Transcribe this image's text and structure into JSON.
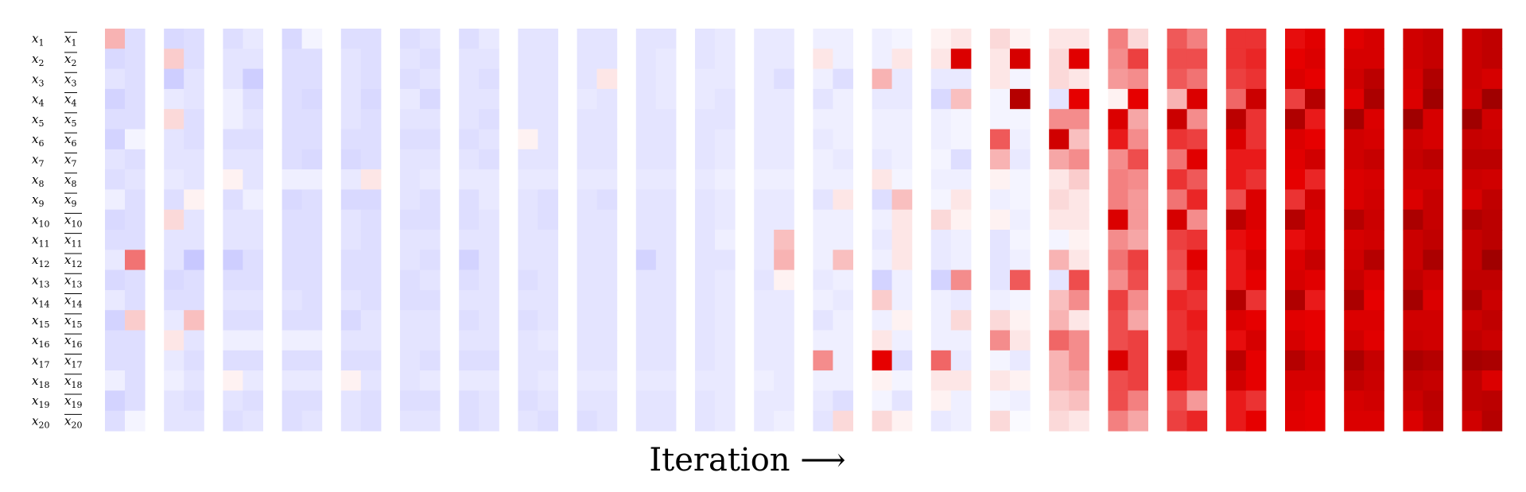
{
  "chart_data": {
    "type": "heatmap",
    "xlabel": "Iteration ⟶",
    "row_labels": [
      {
        "var": "x",
        "sub": "1"
      },
      {
        "var": "x",
        "sub": "2"
      },
      {
        "var": "x",
        "sub": "3"
      },
      {
        "var": "x",
        "sub": "4"
      },
      {
        "var": "x",
        "sub": "5"
      },
      {
        "var": "x",
        "sub": "6"
      },
      {
        "var": "x",
        "sub": "7"
      },
      {
        "var": "x",
        "sub": "8"
      },
      {
        "var": "x",
        "sub": "9"
      },
      {
        "var": "x",
        "sub": "10"
      },
      {
        "var": "x",
        "sub": "11"
      },
      {
        "var": "x",
        "sub": "12"
      },
      {
        "var": "x",
        "sub": "13"
      },
      {
        "var": "x",
        "sub": "14"
      },
      {
        "var": "x",
        "sub": "15"
      },
      {
        "var": "x",
        "sub": "16"
      },
      {
        "var": "x",
        "sub": "17"
      },
      {
        "var": "x",
        "sub": "18"
      },
      {
        "var": "x",
        "sub": "19"
      },
      {
        "var": "x",
        "sub": "20"
      }
    ],
    "negated_row_labels": [
      {
        "var": "x",
        "sub": "1"
      },
      {
        "var": "x",
        "sub": "2"
      },
      {
        "var": "x",
        "sub": "3"
      },
      {
        "var": "x",
        "sub": "4"
      },
      {
        "var": "x",
        "sub": "5"
      },
      {
        "var": "x",
        "sub": "6"
      },
      {
        "var": "x",
        "sub": "7"
      },
      {
        "var": "x",
        "sub": "8"
      },
      {
        "var": "x",
        "sub": "9"
      },
      {
        "var": "x",
        "sub": "10"
      },
      {
        "var": "x",
        "sub": "11"
      },
      {
        "var": "x",
        "sub": "12"
      },
      {
        "var": "x",
        "sub": "13"
      },
      {
        "var": "x",
        "sub": "14"
      },
      {
        "var": "x",
        "sub": "15"
      },
      {
        "var": "x",
        "sub": "16"
      },
      {
        "var": "x",
        "sub": "17"
      },
      {
        "var": "x",
        "sub": "18"
      },
      {
        "var": "x",
        "sub": "19"
      },
      {
        "var": "x",
        "sub": "20"
      }
    ],
    "colormap": {
      "low": "#c8c8ff",
      "mid": "#ffffff",
      "high": "#e60000",
      "max": "#7a0000"
    },
    "value_range": [
      -1,
      4
    ],
    "iterations": [
      [
        [
          0.6,
          -0.7,
          -0.5,
          -0.8,
          -0.6,
          -0.8,
          -0.5,
          -0.6,
          -0.3,
          -0.7,
          -0.6,
          -0.4,
          -0.7,
          -0.4,
          -0.8,
          -0.6,
          -0.6,
          -0.3,
          -0.8,
          -0.6
        ],
        [
          -0.6,
          -0.6,
          -0.6,
          -0.6,
          -0.6,
          -0.2,
          -0.6,
          -0.5,
          -0.6,
          -0.6,
          -0.6,
          1.1,
          -0.6,
          -0.6,
          0.4,
          -0.6,
          -0.6,
          -0.6,
          -0.6,
          -0.2
        ]
      ],
      [
        [
          -0.7,
          0.4,
          -0.9,
          -0.4,
          0.3,
          -0.5,
          -0.5,
          -0.4,
          -0.6,
          0.3,
          -0.5,
          -0.5,
          -0.7,
          -0.6,
          -0.4,
          0.2,
          -0.4,
          -0.3,
          -0.5,
          -0.5
        ],
        [
          -0.6,
          -0.6,
          -0.5,
          -0.5,
          -0.6,
          -0.6,
          -0.5,
          -0.5,
          0.1,
          -0.5,
          -0.5,
          -1.0,
          -0.6,
          -0.6,
          0.5,
          -0.5,
          -0.6,
          -0.5,
          -0.6,
          -0.5
        ]
      ],
      [
        [
          -0.6,
          -0.5,
          -0.5,
          -0.3,
          -0.3,
          -0.6,
          -0.5,
          0.1,
          -0.6,
          -0.5,
          -0.5,
          -0.9,
          -0.6,
          -0.5,
          -0.6,
          -0.3,
          -0.6,
          0.1,
          -0.5,
          -0.6
        ],
        [
          -0.4,
          -0.5,
          -0.9,
          -0.6,
          -0.5,
          -0.6,
          -0.5,
          -0.5,
          -0.3,
          -0.5,
          -0.5,
          -0.6,
          -0.6,
          -0.5,
          -0.6,
          -0.3,
          -0.6,
          -0.4,
          -0.6,
          -0.5
        ]
      ],
      [
        [
          -0.7,
          -0.6,
          -0.6,
          -0.6,
          -0.6,
          -0.6,
          -0.6,
          -0.3,
          -0.7,
          -0.6,
          -0.6,
          -0.6,
          -0.6,
          -0.5,
          -0.6,
          -0.3,
          -0.6,
          -0.4,
          -0.6,
          -0.6
        ],
        [
          -0.2,
          -0.6,
          -0.6,
          -0.7,
          -0.6,
          -0.6,
          -0.7,
          -0.3,
          -0.6,
          -0.6,
          -0.6,
          -0.6,
          -0.6,
          -0.6,
          -0.6,
          -0.3,
          -0.6,
          -0.4,
          -0.6,
          -0.5
        ]
      ],
      [
        [
          -0.6,
          -0.5,
          -0.5,
          -0.5,
          -0.5,
          -0.6,
          -0.7,
          -0.4,
          -0.7,
          -0.5,
          -0.5,
          -0.6,
          -0.6,
          -0.5,
          -0.7,
          -0.5,
          -0.6,
          0.1,
          -0.5,
          -0.5
        ],
        [
          -0.6,
          -0.6,
          -0.6,
          -0.7,
          -0.6,
          -0.6,
          -0.6,
          0.2,
          -0.7,
          -0.6,
          -0.6,
          -0.6,
          -0.6,
          -0.6,
          -0.5,
          -0.5,
          -0.6,
          -0.5,
          -0.6,
          -0.6
        ]
      ],
      [
        [
          -0.6,
          -0.5,
          -0.6,
          -0.4,
          -0.5,
          -0.6,
          -0.5,
          -0.5,
          -0.5,
          -0.6,
          -0.5,
          -0.5,
          -0.6,
          -0.6,
          -0.5,
          -0.5,
          -0.5,
          -0.5,
          -0.6,
          -0.5
        ],
        [
          -0.5,
          -0.6,
          -0.5,
          -0.7,
          -0.5,
          -0.6,
          -0.5,
          -0.4,
          -0.6,
          -0.6,
          -0.5,
          -0.6,
          -0.5,
          -0.6,
          -0.5,
          -0.5,
          -0.6,
          -0.4,
          -0.6,
          -0.5
        ]
      ],
      [
        [
          -0.6,
          -0.5,
          -0.5,
          -0.5,
          -0.5,
          -0.6,
          -0.5,
          -0.4,
          -0.6,
          -0.6,
          -0.5,
          -0.8,
          -0.6,
          -0.5,
          -0.6,
          -0.5,
          -0.6,
          -0.4,
          -0.6,
          -0.6
        ],
        [
          -0.4,
          -0.5,
          -0.6,
          -0.5,
          -0.6,
          -0.5,
          -0.6,
          -0.4,
          -0.4,
          -0.5,
          -0.5,
          -0.5,
          -0.5,
          -0.5,
          -0.5,
          -0.5,
          -0.6,
          -0.4,
          -0.5,
          -0.5
        ]
      ],
      [
        [
          -0.5,
          -0.5,
          -0.5,
          -0.5,
          -0.5,
          0.1,
          -0.5,
          -0.4,
          -0.5,
          -0.5,
          -0.5,
          -0.5,
          -0.6,
          -0.5,
          -0.6,
          -0.5,
          -0.5,
          -0.5,
          -0.6,
          -0.5
        ],
        [
          -0.5,
          -0.5,
          -0.5,
          -0.5,
          -0.5,
          -0.5,
          -0.5,
          -0.4,
          -0.6,
          -0.6,
          -0.5,
          -0.5,
          -0.5,
          -0.5,
          -0.5,
          -0.4,
          -0.5,
          -0.4,
          -0.5,
          -0.6
        ]
      ],
      [
        [
          -0.5,
          -0.5,
          -0.5,
          -0.4,
          -0.5,
          -0.5,
          -0.5,
          -0.4,
          -0.5,
          -0.5,
          -0.5,
          -0.5,
          -0.5,
          -0.5,
          -0.5,
          -0.5,
          -0.5,
          -0.4,
          -0.5,
          -0.6
        ],
        [
          -0.5,
          -0.5,
          0.2,
          -0.5,
          -0.5,
          -0.5,
          -0.5,
          -0.4,
          -0.6,
          -0.5,
          -0.5,
          -0.5,
          -0.5,
          -0.5,
          -0.5,
          -0.5,
          -0.5,
          -0.4,
          -0.5,
          -0.5
        ]
      ],
      [
        [
          -0.5,
          -0.5,
          -0.5,
          -0.5,
          -0.5,
          -0.5,
          -0.5,
          -0.4,
          -0.5,
          -0.5,
          -0.5,
          -0.8,
          -0.5,
          -0.5,
          -0.5,
          -0.5,
          -0.5,
          -0.4,
          -0.5,
          -0.5
        ],
        [
          -0.5,
          -0.4,
          -0.4,
          -0.4,
          -0.5,
          -0.5,
          -0.5,
          -0.4,
          -0.5,
          -0.5,
          -0.5,
          -0.5,
          -0.5,
          -0.5,
          -0.5,
          -0.5,
          -0.5,
          -0.4,
          -0.5,
          -0.5
        ]
      ],
      [
        [
          -0.5,
          -0.5,
          -0.4,
          -0.4,
          -0.5,
          -0.5,
          -0.5,
          -0.4,
          -0.5,
          -0.5,
          -0.5,
          -0.5,
          -0.5,
          -0.5,
          -0.5,
          -0.5,
          -0.5,
          -0.4,
          -0.5,
          -0.5
        ],
        [
          -0.4,
          -0.4,
          -0.4,
          -0.5,
          -0.5,
          -0.4,
          -0.4,
          -0.3,
          -0.4,
          -0.4,
          -0.3,
          -0.5,
          -0.4,
          -0.4,
          -0.4,
          -0.4,
          -0.4,
          -0.4,
          -0.4,
          -0.4
        ]
      ],
      [
        [
          -0.4,
          -0.4,
          -0.4,
          -0.4,
          -0.4,
          -0.4,
          -0.4,
          -0.3,
          -0.4,
          -0.4,
          -0.4,
          -0.4,
          -0.5,
          -0.4,
          -0.4,
          -0.4,
          -0.4,
          -0.3,
          -0.4,
          -0.4
        ],
        [
          -0.4,
          -0.4,
          -0.6,
          -0.4,
          -0.4,
          -0.4,
          -0.4,
          -0.3,
          -0.4,
          -0.4,
          0.5,
          0.6,
          0.1,
          -0.4,
          -0.4,
          -0.4,
          -0.4,
          -0.4,
          -0.4,
          -0.3
        ]
      ],
      [
        [
          -0.3,
          0.2,
          -0.3,
          -0.5,
          -0.3,
          -0.4,
          -0.3,
          -0.3,
          -0.5,
          -0.3,
          -0.3,
          -0.3,
          -0.4,
          -0.3,
          -0.5,
          -0.3,
          0.9,
          -0.3,
          -0.4,
          -0.5
        ],
        [
          -0.3,
          -0.3,
          -0.6,
          -0.3,
          -0.3,
          -0.3,
          -0.4,
          -0.3,
          0.2,
          -0.3,
          -0.3,
          0.5,
          -0.3,
          -0.4,
          -0.3,
          -0.3,
          -0.3,
          -0.3,
          -0.6,
          0.3
        ]
      ],
      [
        [
          -0.3,
          -0.3,
          0.6,
          -0.4,
          -0.3,
          -0.3,
          -0.4,
          0.2,
          -0.6,
          -0.3,
          -0.4,
          -0.3,
          -0.8,
          0.4,
          -0.3,
          0.2,
          2.0,
          0.1,
          -0.2,
          0.3
        ],
        [
          -0.2,
          0.2,
          -0.4,
          -0.4,
          -0.3,
          -0.3,
          -0.3,
          -0.2,
          0.5,
          0.2,
          0.2,
          0.2,
          -0.3,
          -0.3,
          0.1,
          -0.3,
          -0.6,
          -0.2,
          -0.5,
          0.1
        ]
      ],
      [
        [
          0.1,
          0.2,
          -0.4,
          -0.7,
          -0.3,
          -0.3,
          -0.2,
          -0.3,
          -0.2,
          0.3,
          -0.4,
          -0.4,
          -0.8,
          -0.3,
          -0.3,
          -0.3,
          1.2,
          0.2,
          0.1,
          -0.4
        ],
        [
          0.2,
          2.2,
          -0.4,
          0.5,
          -0.2,
          -0.2,
          -0.6,
          -0.3,
          0.2,
          0.1,
          -0.3,
          -0.3,
          0.9,
          -0.4,
          0.3,
          -0.3,
          -0.4,
          0.2,
          -0.3,
          -0.3
        ]
      ],
      [
        [
          0.3,
          0.2,
          0.2,
          -0.2,
          -0.2,
          1.3,
          0.6,
          0.1,
          -0.3,
          0.1,
          -0.5,
          -0.5,
          -0.5,
          -0.3,
          0.3,
          0.9,
          -0.2,
          0.2,
          -0.2,
          0.3
        ],
        [
          0.1,
          2.3,
          -0.2,
          2.9,
          -0.2,
          -0.3,
          -0.4,
          -0.2,
          -0.2,
          -0.3,
          -0.2,
          -0.3,
          1.3,
          -0.2,
          0.1,
          0.2,
          -0.4,
          0.1,
          -0.3,
          -0.1
        ]
      ],
      [
        [
          0.2,
          0.3,
          0.3,
          -0.5,
          0.9,
          2.4,
          0.7,
          0.2,
          0.3,
          0.2,
          -0.2,
          0.6,
          -0.5,
          0.5,
          0.6,
          1.2,
          0.6,
          0.6,
          0.4,
          0.3
        ],
        [
          0.2,
          2.1,
          0.2,
          2.0,
          0.9,
          0.5,
          0.9,
          0.4,
          0.2,
          0.2,
          0.1,
          0.2,
          1.4,
          0.9,
          0.2,
          0.9,
          0.9,
          0.7,
          0.5,
          0.2
        ]
      ],
      [
        [
          1.0,
          0.9,
          0.8,
          0.1,
          2.2,
          1.8,
          0.9,
          1.0,
          1.0,
          2.2,
          0.9,
          1.1,
          0.9,
          1.5,
          1.4,
          1.4,
          2.2,
          1.4,
          1.4,
          1.0
        ],
        [
          0.3,
          1.5,
          0.9,
          2.0,
          0.7,
          0.9,
          1.4,
          0.9,
          0.8,
          0.8,
          0.7,
          1.5,
          1.4,
          0.9,
          0.7,
          1.5,
          1.5,
          1.5,
          1.0,
          0.7
        ]
      ],
      [
        [
          1.3,
          1.4,
          1.3,
          0.6,
          2.5,
          1.6,
          1.1,
          1.6,
          1.1,
          2.3,
          1.5,
          1.4,
          1.3,
          1.7,
          1.6,
          1.6,
          2.5,
          1.9,
          1.4,
          1.5
        ],
        [
          1.0,
          1.4,
          1.1,
          2.2,
          0.9,
          1.5,
          2.1,
          1.3,
          1.7,
          0.9,
          1.6,
          2.1,
          1.8,
          1.6,
          1.8,
          1.7,
          1.7,
          1.7,
          0.8,
          1.7
        ]
      ],
      [
        [
          1.6,
          1.6,
          1.5,
          1.2,
          2.8,
          2.2,
          1.8,
          1.8,
          1.4,
          2.8,
          1.9,
          1.8,
          1.8,
          2.9,
          2.2,
          1.9,
          2.8,
          2.4,
          1.8,
          1.8
        ],
        [
          1.6,
          1.7,
          1.6,
          2.5,
          1.6,
          1.6,
          1.8,
          1.6,
          2.2,
          2.2,
          2.0,
          2.3,
          2.0,
          1.6,
          2.0,
          2.3,
          2.0,
          2.0,
          1.6,
          2.0
        ]
      ],
      [
        [
          1.9,
          2.0,
          2.2,
          1.5,
          3.0,
          2.2,
          2.1,
          2.0,
          1.6,
          2.9,
          1.9,
          2.2,
          2.3,
          3.0,
          2.1,
          2.3,
          2.9,
          2.3,
          2.2,
          2.1
        ],
        [
          2.1,
          2.2,
          2.0,
          2.9,
          1.8,
          2.0,
          2.4,
          1.7,
          2.4,
          2.2,
          2.2,
          2.6,
          2.1,
          1.8,
          2.0,
          2.0,
          2.4,
          2.3,
          2.0,
          2.0
        ]
      ],
      [
        [
          2.1,
          2.3,
          2.4,
          2.1,
          3.2,
          2.4,
          2.4,
          2.2,
          2.2,
          2.9,
          2.3,
          2.4,
          2.6,
          3.1,
          2.2,
          2.4,
          3.1,
          2.7,
          2.3,
          2.2
        ],
        [
          2.3,
          2.3,
          2.8,
          3.1,
          2.2,
          2.3,
          2.6,
          2.3,
          2.4,
          2.5,
          2.4,
          2.9,
          2.2,
          2.0,
          2.2,
          2.1,
          2.6,
          2.5,
          2.4,
          2.2
        ]
      ],
      [
        [
          2.4,
          2.4,
          2.3,
          2.2,
          3.3,
          2.5,
          2.6,
          2.4,
          2.2,
          3.1,
          2.5,
          2.5,
          2.7,
          3.2,
          2.4,
          2.5,
          3.1,
          2.7,
          2.5,
          2.2
        ],
        [
          2.6,
          2.6,
          3.0,
          3.3,
          2.3,
          2.3,
          2.8,
          2.4,
          2.6,
          2.6,
          2.7,
          3.1,
          2.4,
          2.2,
          2.4,
          2.4,
          2.9,
          2.6,
          2.8,
          2.7
        ]
      ],
      [
        [
          2.5,
          2.5,
          2.5,
          2.4,
          3.3,
          2.6,
          2.8,
          2.5,
          2.3,
          3.0,
          2.6,
          2.6,
          2.7,
          3.1,
          2.5,
          2.7,
          3.2,
          2.7,
          2.7,
          2.4
        ],
        [
          2.7,
          2.7,
          2.3,
          3.3,
          2.4,
          2.5,
          2.8,
          2.4,
          2.7,
          2.8,
          2.8,
          3.3,
          2.7,
          2.5,
          2.7,
          2.5,
          3.1,
          2.2,
          2.8,
          2.9
        ]
      ]
    ]
  }
}
